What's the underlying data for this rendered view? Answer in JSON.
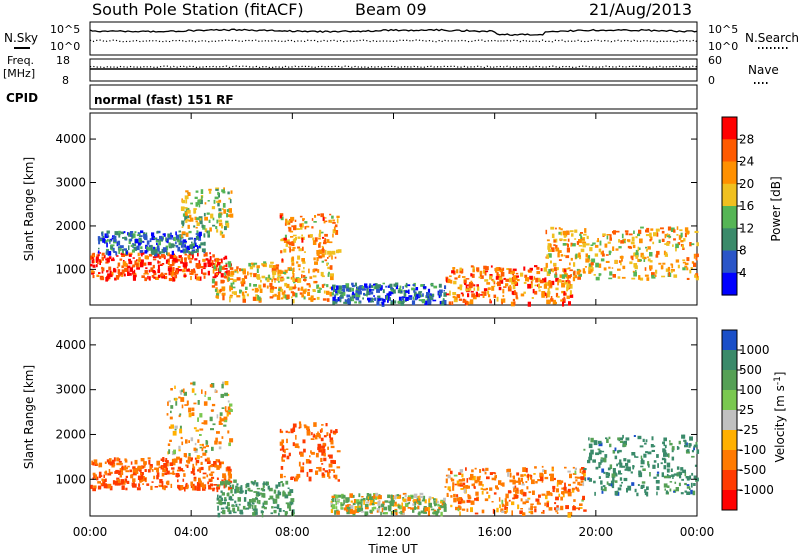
{
  "header": {
    "station": "South Pole Station (fitACF)",
    "beam": "Beam 09",
    "date": "21/Aug/2013"
  },
  "top_panels": {
    "nsky_label": "N.Sky",
    "nsky_ticks": [
      "10^5",
      "10^0"
    ],
    "nsearch_label": "N.Search",
    "nsearch_ticks": [
      "10^5",
      "10^0"
    ],
    "freq_label_1": "Freq.",
    "freq_label_2": "[MHz]",
    "freq_ticks": [
      "18",
      "8"
    ],
    "nave_label": "Nave",
    "nave_ticks": [
      "60",
      "0"
    ],
    "cpid_label": "CPID",
    "cpid_text": "normal (fast) 151 RF"
  },
  "chart_data": [
    {
      "type": "heatmap",
      "title": "",
      "xlabel": "Time UT",
      "ylabel": "Slant Range [km]",
      "x_ticks": [
        "00:00",
        "04:00",
        "08:00",
        "12:00",
        "16:00",
        "20:00",
        "00:00"
      ],
      "x_range_hours": [
        0,
        24
      ],
      "y_ticks": [
        1000,
        2000,
        3000,
        4000
      ],
      "ylim": [
        180,
        4600
      ],
      "colorbar": {
        "label": "Power [dB]",
        "ticks": [
          "4",
          "8",
          "12",
          "16",
          "20",
          "24",
          "28"
        ],
        "colors": [
          "#0000ff",
          "#2a55c8",
          "#3a8a6a",
          "#55b555",
          "#f0c020",
          "#ff9000",
          "#ff5a00",
          "#ff0000"
        ]
      },
      "echo_regions": [
        {
          "t0": 0.0,
          "t1": 5.5,
          "r0": 800,
          "r1": 1400,
          "value": 28
        },
        {
          "t0": 0.3,
          "t1": 4.5,
          "r0": 1400,
          "r1": 1900,
          "value": 8
        },
        {
          "t0": 3.5,
          "t1": 5.6,
          "r0": 1800,
          "r1": 2900,
          "value": 16
        },
        {
          "t0": 4.8,
          "t1": 9.5,
          "r0": 300,
          "r1": 1200,
          "value": 20
        },
        {
          "t0": 7.5,
          "t1": 9.8,
          "r0": 1200,
          "r1": 2300,
          "value": 22
        },
        {
          "t0": 9.5,
          "t1": 14.0,
          "r0": 250,
          "r1": 700,
          "value": 8
        },
        {
          "t0": 14.0,
          "t1": 19.0,
          "r0": 250,
          "r1": 1100,
          "value": 24
        },
        {
          "t0": 18.0,
          "t1": 24.0,
          "r0": 800,
          "r1": 2000,
          "value": 20
        }
      ]
    },
    {
      "type": "heatmap",
      "title": "",
      "xlabel": "Time UT",
      "ylabel": "Slant Range [km]",
      "x_ticks": [
        "00:00",
        "04:00",
        "08:00",
        "12:00",
        "16:00",
        "20:00",
        "00:00"
      ],
      "x_range_hours": [
        0,
        24
      ],
      "y_ticks": [
        1000,
        2000,
        3000,
        4000
      ],
      "ylim": [
        180,
        4600
      ],
      "colorbar": {
        "label": "Velocity [m s^-1]",
        "ticks": [
          "1000",
          "500",
          "100",
          "25",
          "-25",
          "-100",
          "-500",
          "-1000"
        ],
        "colors": [
          "#1a4fc8",
          "#3a8a6a",
          "#55a055",
          "#7ac850",
          "#c0c0c0",
          "#ffb000",
          "#ff7a00",
          "#ff3a00",
          "#ff0000"
        ]
      },
      "echo_regions": [
        {
          "t0": 0.0,
          "t1": 5.5,
          "r0": 800,
          "r1": 1500,
          "value": -500
        },
        {
          "t0": 3.0,
          "t1": 5.5,
          "r0": 1500,
          "r1": 3200,
          "value": -100
        },
        {
          "t0": 5.0,
          "t1": 8.0,
          "r0": 250,
          "r1": 1000,
          "value": 500
        },
        {
          "t0": 7.5,
          "t1": 9.8,
          "r0": 1000,
          "r1": 2300,
          "value": -500
        },
        {
          "t0": 9.5,
          "t1": 14.0,
          "r0": 250,
          "r1": 700,
          "value": 100
        },
        {
          "t0": 14.0,
          "t1": 19.5,
          "r0": 250,
          "r1": 1300,
          "value": -300
        },
        {
          "t0": 19.5,
          "t1": 24.0,
          "r0": 700,
          "r1": 2000,
          "value": 700
        }
      ]
    }
  ]
}
